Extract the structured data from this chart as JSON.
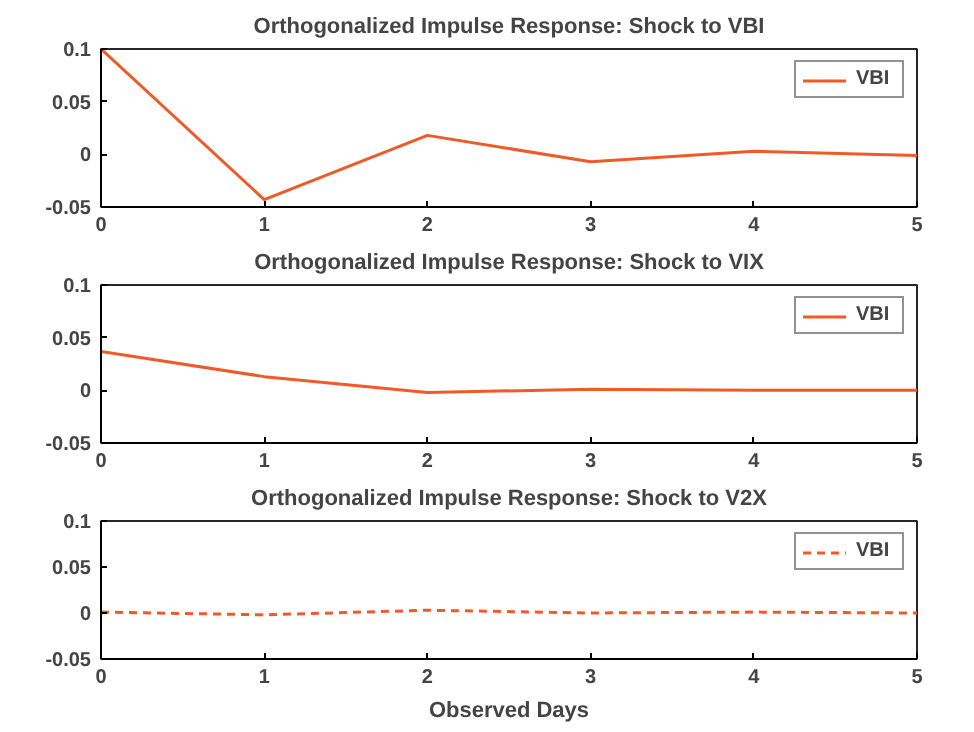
{
  "chart_data": [
    {
      "type": "line",
      "title": "Orthogonalized Impulse Response: Shock to VBI",
      "x": [
        0,
        1,
        2,
        3,
        4,
        5
      ],
      "xlim": [
        0,
        5
      ],
      "ylim": [
        -0.05,
        0.1
      ],
      "xticks": [
        0,
        1,
        2,
        3,
        4,
        5
      ],
      "yticks": [
        -0.05,
        0,
        0.05,
        0.1
      ],
      "legend": "top right",
      "line_style": "solid",
      "series": [
        {
          "name": "VBI",
          "color": "#f05a28",
          "values": [
            0.1,
            -0.043,
            0.018,
            -0.007,
            0.003,
            -0.001
          ]
        }
      ]
    },
    {
      "type": "line",
      "title": "Orthogonalized Impulse Response: Shock to VIX",
      "x": [
        0,
        1,
        2,
        3,
        4,
        5
      ],
      "xlim": [
        0,
        5
      ],
      "ylim": [
        -0.05,
        0.1
      ],
      "xticks": [
        0,
        1,
        2,
        3,
        4,
        5
      ],
      "yticks": [
        -0.05,
        0,
        0.05,
        0.1
      ],
      "legend": "top right",
      "line_style": "solid",
      "series": [
        {
          "name": "VBI",
          "color": "#f05a28",
          "values": [
            0.037,
            0.013,
            -0.002,
            0.001,
            0.0,
            0.0
          ]
        }
      ]
    },
    {
      "type": "line",
      "title": "Orthogonalized Impulse Response: Shock to V2X",
      "xlabel": "Observed Days",
      "x": [
        0,
        1,
        2,
        3,
        4,
        5
      ],
      "xlim": [
        0,
        5
      ],
      "ylim": [
        -0.05,
        0.1
      ],
      "xticks": [
        0,
        1,
        2,
        3,
        4,
        5
      ],
      "yticks": [
        -0.05,
        0,
        0.05,
        0.1
      ],
      "legend": "top right",
      "line_style": "dashed",
      "series": [
        {
          "name": "VBI",
          "color": "#f05a28",
          "values": [
            0.001,
            -0.002,
            0.003,
            0.0,
            0.001,
            0.0
          ]
        }
      ]
    }
  ]
}
